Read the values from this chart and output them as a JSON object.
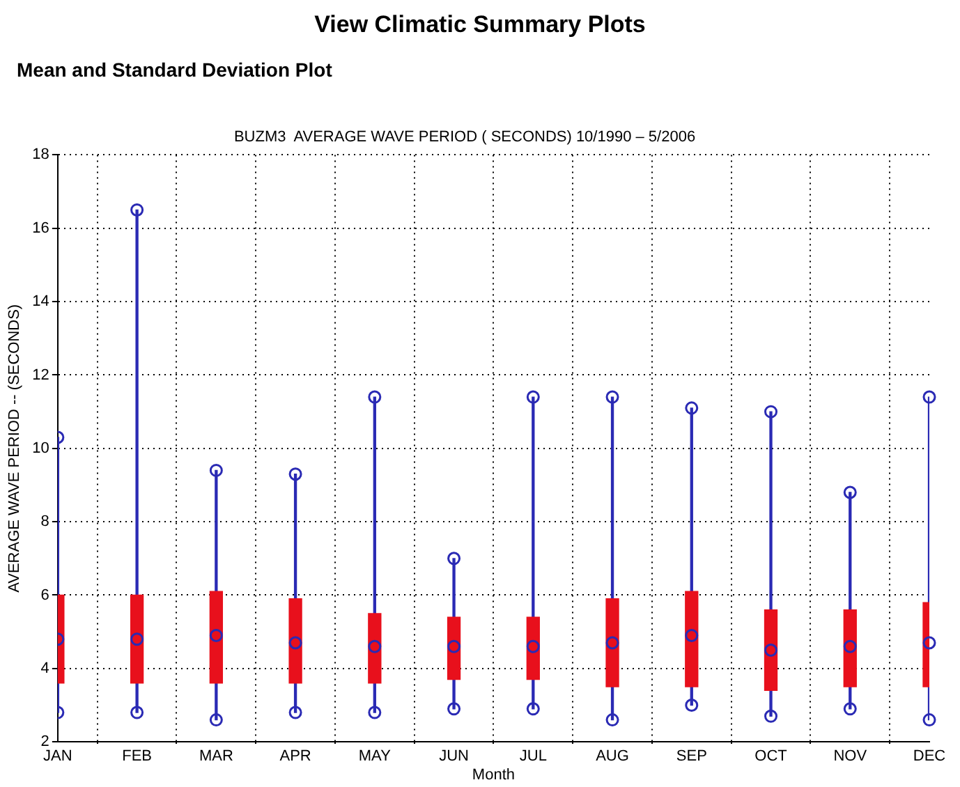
{
  "chart_data": {
    "type": "bar",
    "title": "BUZM3  AVERAGE WAVE PERIOD ( SECONDS) 10/1990 – 5/2006",
    "subtitle": "Mean and Standard Deviation Plot",
    "annotations": [
      "View Climatic Summary Plots"
    ],
    "xlabel": "Month",
    "ylabel": "AVERAGE WAVE PERIOD -- (SECONDS)",
    "categories": [
      "JAN",
      "FEB",
      "MAR",
      "APR",
      "MAY",
      "JUN",
      "JUL",
      "AUG",
      "SEP",
      "OCT",
      "NOV",
      "DEC"
    ],
    "series": [
      {
        "color": "#2a2ab4",
        "base": [
          2.8,
          2.8,
          2.6,
          2.8,
          2.8,
          2.9,
          2.9,
          2.6,
          3.0,
          2.7,
          2.9,
          2.6
        ],
        "values": [
          7.5,
          13.7,
          6.8,
          6.5,
          8.6,
          4.1,
          8.5,
          8.8,
          8.1,
          8.3,
          5.9,
          8.8
        ]
      },
      {
        "color": "#e8101c",
        "base": [
          3.6,
          3.6,
          3.6,
          3.6,
          3.6,
          3.7,
          3.7,
          3.5,
          3.5,
          3.4,
          3.5,
          3.5
        ],
        "values": [
          2.4,
          2.4,
          2.5,
          2.3,
          1.9,
          1.7,
          1.7,
          2.4,
          2.6,
          2.2,
          2.1,
          2.3
        ]
      },
      {
        "type": "scatter",
        "color": "#2a2ab4",
        "marker": "circle",
        "values": [
          2.8,
          2.8,
          2.6,
          2.8,
          2.8,
          2.9,
          2.9,
          2.6,
          3.0,
          2.7,
          2.9,
          2.6
        ]
      },
      {
        "type": "scatter",
        "color": "#2a2ab4",
        "marker": "circle",
        "values": [
          10.3,
          16.5,
          9.4,
          9.3,
          11.4,
          7.0,
          11.4,
          11.4,
          11.1,
          11.0,
          8.8,
          11.4
        ]
      },
      {
        "type": "scatter",
        "color": "#2a2ab4",
        "marker": "circle",
        "values": [
          4.8,
          4.8,
          4.9,
          4.7,
          4.6,
          4.6,
          4.6,
          4.7,
          4.9,
          4.5,
          4.6,
          4.7
        ]
      }
    ],
    "ylim": [
      2,
      18
    ],
    "yticks": [
      2,
      4,
      6,
      8,
      10,
      12,
      14,
      16,
      18
    ],
    "grid": true
  }
}
